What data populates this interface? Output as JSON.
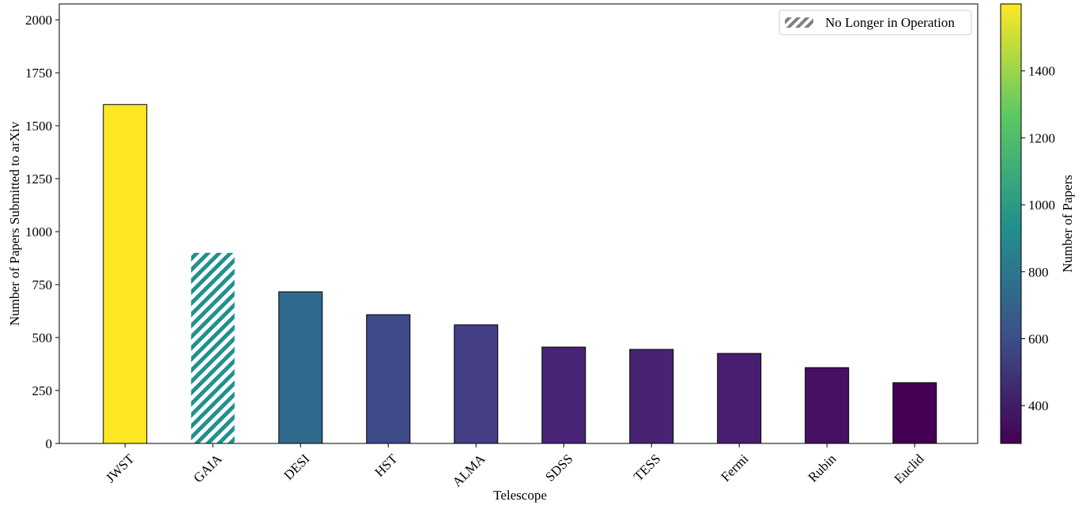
{
  "chart_data": {
    "type": "bar",
    "x_label": "Telescope",
    "y_label": "Number of Papers Submitted to arXiv",
    "categories": [
      "JWST",
      "GAIA",
      "DESI",
      "HST",
      "ALMA",
      "SDSS",
      "TESS",
      "Fermi",
      "Rubin",
      "Euclid"
    ],
    "values": [
      1600,
      900,
      716,
      608,
      560,
      455,
      444,
      425,
      358,
      287
    ],
    "colors": [
      "#fde725",
      "#21918c",
      "#30698e",
      "#3e4a89",
      "#433e85",
      "#482576",
      "#482374",
      "#481f70",
      "#471063",
      "#440154"
    ],
    "hatched": [
      false,
      true,
      false,
      false,
      false,
      false,
      false,
      false,
      false,
      false
    ],
    "ylim": [
      0,
      2075
    ],
    "yticks": [
      0,
      250,
      500,
      750,
      1000,
      1250,
      1500,
      1750,
      2000
    ],
    "legend": {
      "label": "No Longer in Operation",
      "position": "upper right"
    },
    "colorbar": {
      "label": "Number of Papers",
      "lim": [
        287,
        1600
      ],
      "ticks": [
        400,
        600,
        800,
        1000,
        1200,
        1400
      ],
      "colormap": [
        "#440154",
        "#3b528b",
        "#21918c",
        "#5ec962",
        "#fde725"
      ]
    }
  }
}
